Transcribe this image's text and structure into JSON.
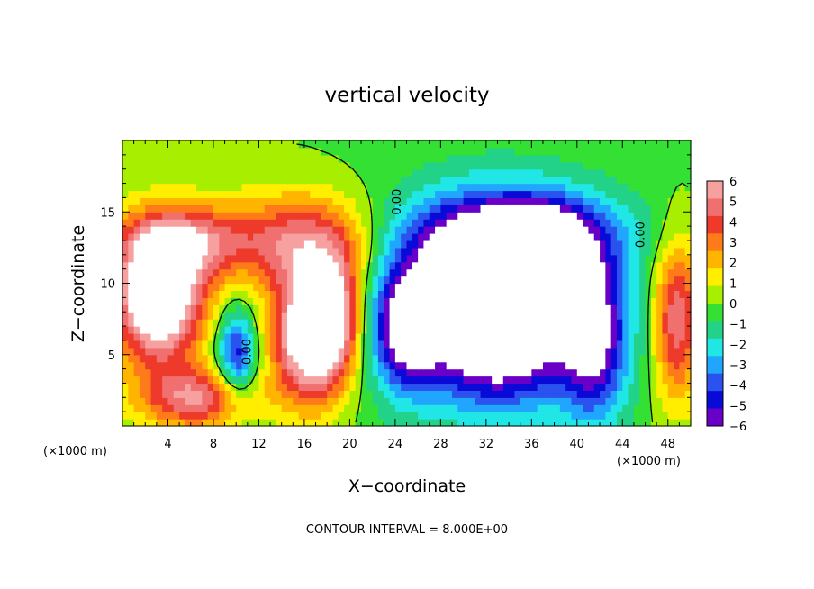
{
  "chart_data": {
    "type": "heatmap",
    "title": "vertical velocity",
    "xlabel": "X−coordinate",
    "ylabel": "Z−coordinate",
    "x_unit": "(×1000 m)",
    "x_unit_right": "(×1000 m)",
    "footer": "CONTOUR INTERVAL = 8.000E+00",
    "xlim": [
      0,
      50
    ],
    "ylim": [
      0,
      20
    ],
    "x_ticks": [
      4,
      8,
      12,
      16,
      20,
      24,
      28,
      32,
      36,
      40,
      44,
      48
    ],
    "x_tick_labels": [
      "4",
      "8",
      "12",
      "16",
      "20",
      "24",
      "28",
      "32",
      "36",
      "40",
      "44",
      "48"
    ],
    "y_ticks": [
      5,
      10,
      15
    ],
    "y_tick_labels": [
      "5",
      "10",
      "15"
    ],
    "colorbar": {
      "min": -6,
      "max": 6,
      "ticks": [
        6,
        5,
        4,
        3,
        2,
        1,
        0,
        -1,
        -2,
        -3,
        -4,
        -5,
        -6
      ],
      "tick_labels": [
        "6",
        "5",
        "4",
        "3",
        "2",
        "1",
        "0",
        "−1",
        "−2",
        "−3",
        "−4",
        "−5",
        "−6"
      ],
      "colors_high_to_low": [
        "#f7a0a0",
        "#f07070",
        "#ee3a2a",
        "#ff7a18",
        "#ffb400",
        "#ffee00",
        "#a8ee00",
        "#33e033",
        "#22d288",
        "#20e6e6",
        "#20a6ff",
        "#2a52ee",
        "#0a0ad8",
        "#6a00c8"
      ]
    },
    "contour_labels": [
      {
        "text": "0.00",
        "x": 24.5,
        "y": 15.7
      },
      {
        "text": "0.00",
        "x": 45.9,
        "y": 13.4
      },
      {
        "text": "0.00",
        "x": 11.3,
        "y": 5.2
      }
    ],
    "features": [
      {
        "name": "updraft-west",
        "x": 3.2,
        "z": 9.0,
        "sx": 2.8,
        "sz": 3.2,
        "w": 9
      },
      {
        "name": "updraft-west-upper",
        "x": 5.5,
        "z": 13.0,
        "sx": 4.0,
        "sz": 1.8,
        "w": 4.5
      },
      {
        "name": "updraft-west-base",
        "x": 6.5,
        "z": 2.0,
        "sx": 3.5,
        "sz": 1.5,
        "w": 5
      },
      {
        "name": "updraft-center",
        "x": 16.5,
        "z": 6.5,
        "sx": 2.3,
        "sz": 3.3,
        "w": 9
      },
      {
        "name": "updraft-center-upper",
        "x": 16.0,
        "z": 13.0,
        "sx": 4.5,
        "sz": 2.4,
        "w": 4.8
      },
      {
        "name": "updraft-center-east",
        "x": 19.0,
        "z": 8.0,
        "sx": 1.5,
        "sz": 3.0,
        "w": 4
      },
      {
        "name": "updraft-east-edge",
        "x": 48.8,
        "z": 7.5,
        "sx": 1.5,
        "sz": 4.0,
        "w": 5.5
      },
      {
        "name": "downdraft-small",
        "x": 10.0,
        "z": 5.0,
        "sx": 1.2,
        "sz": 2.2,
        "w": -5
      },
      {
        "name": "downdraft-core",
        "x": 33.0,
        "z": 8.5,
        "sx": 4.5,
        "sz": 4.0,
        "w": -11
      },
      {
        "name": "downdraft-lobe-east",
        "x": 37.5,
        "z": 12.0,
        "sx": 2.5,
        "sz": 2.2,
        "w": -5
      },
      {
        "name": "downdraft-west-arm",
        "x": 25.0,
        "z": 7.0,
        "sx": 2.0,
        "sz": 3.0,
        "w": -5.5
      },
      {
        "name": "downdraft-east-arm",
        "x": 41.5,
        "z": 6.0,
        "sx": 2.0,
        "sz": 4.0,
        "w": -5
      },
      {
        "name": "downdraft-upper-band",
        "x": 34.0,
        "z": 13.5,
        "sx": 7.0,
        "sz": 2.0,
        "w": -3.5
      },
      {
        "name": "downdraft-broad",
        "x": 33.0,
        "z": 9.0,
        "sx": 10.0,
        "sz": 6.0,
        "w": -2.2
      }
    ]
  }
}
